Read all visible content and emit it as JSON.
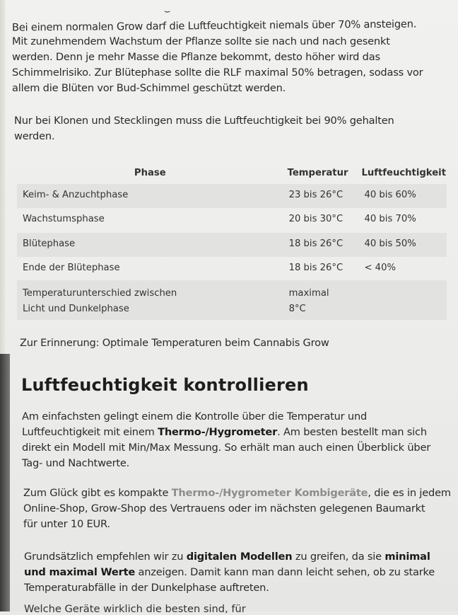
{
  "intro": {
    "lines": [
      "Bei einem normalen Grow darf die Luftfeuchtigkeit niemals über 70% ansteigen.",
      "Mit zunehmendem Wachstum der Pflanze sollte sie nach und nach gesenkt",
      "werden. Denn je mehr Masse die Pflanze bekommt, desto höher wird das",
      "Schimmelrisiko. Zur Blütephase sollte die RLF maximal 50% betragen, sodass vor",
      "allem die Blüten vor Bud-Schimmel geschützt werden."
    ],
    "clones_lines": [
      "Nur bei Klonen und Stecklingen muss die Luftfeuchtigkeit bei 90% gehalten",
      "werden."
    ]
  },
  "table": {
    "headers": [
      "Phase",
      "Temperatur",
      "Luftfeuchtigkeit"
    ],
    "rows": [
      [
        "Keim- & Anzuchtphase",
        "23 bis 26°C",
        "40 bis 60%"
      ],
      [
        "Wachstumsphase",
        "20 bis 30°C",
        "40 bis 70%"
      ],
      [
        "Blütephase",
        "18 bis 26°C",
        "40 bis 50%"
      ],
      [
        "Ende der Blütephase",
        "18 bis 26°C",
        "< 40%"
      ],
      [
        "Temperaturunterschied zwischen Licht und Dunkelphase",
        "maximal 8°C",
        ""
      ]
    ],
    "caption": "Zur Erinnerung: Optimale Temperaturen beim Cannabis Grow"
  },
  "section": {
    "heading": "Luftfeuchtigkeit kontrollieren",
    "p1": {
      "l1": "Am einfachsten gelingt einem die Kontrolle über die Temperatur und",
      "l2a": "Luftfeuchtigkeit mit einem ",
      "l2b": "Thermo-/Hygrometer",
      "l2c": ". Am besten bestellt man sich",
      "l3": "direkt ein Modell mit Min/Max Messung. So erhält man auch einen Überblick über",
      "l4": "Tag- und Nachtwerte."
    },
    "p2": {
      "l1a": "Zum Glück gibt es kompakte ",
      "l1b": "Thermo-/Hygrometer Kombigeräte",
      "l1c": ", die es in jedem",
      "l2": "Online-Shop, Grow-Shop des Vertrauens oder im nächsten gelegenen Baumarkt",
      "l3": "für unter 10 EUR."
    },
    "p3": {
      "l1a": "Grundsätzlich empfehlen wir zu ",
      "l1b": "digitalen Modellen",
      "l1c": " zu greifen, da sie ",
      "l1d": "minimal",
      "l2a": "und maximal Werte",
      "l2b": " anzeigen. Damit kann man dann leicht sehen, ob zu starke",
      "l3": "Temperaturabfälle in der Dunkelphase auftreten."
    },
    "cut_line": "Welche Geräte wirklich die besten sind, für"
  }
}
